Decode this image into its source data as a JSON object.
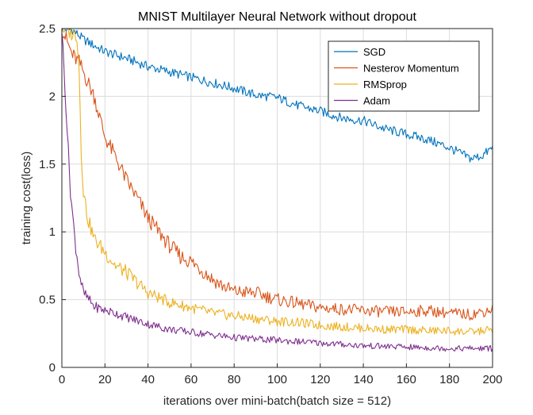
{
  "chart_data": {
    "type": "line",
    "title": "MNIST Multilayer Neural Network without dropout",
    "xlabel": "iterations over mini-batch(batch size = 512)",
    "ylabel": "training cost(loss)",
    "xlim": [
      0,
      200
    ],
    "ylim": [
      0,
      2.5
    ],
    "xticks": [
      0,
      20,
      40,
      60,
      80,
      100,
      120,
      140,
      160,
      180,
      200
    ],
    "yticks": [
      0,
      0.5,
      1,
      1.5,
      2,
      2.5
    ],
    "xtick_labels": [
      "0",
      "20",
      "40",
      "60",
      "80",
      "100",
      "120",
      "140",
      "160",
      "180",
      "200"
    ],
    "ytick_labels": [
      "0",
      "0.5",
      "1",
      "1.5",
      "2",
      "2.5"
    ],
    "grid": true,
    "legend_position": "top-right",
    "series": [
      {
        "name": "SGD",
        "color": "#0072BD",
        "x": [
          0,
          5,
          10,
          20,
          30,
          40,
          50,
          60,
          70,
          80,
          90,
          100,
          110,
          120,
          130,
          140,
          150,
          160,
          170,
          180,
          185,
          190,
          195,
          200
        ],
        "values": [
          2.5,
          2.49,
          2.42,
          2.33,
          2.28,
          2.22,
          2.18,
          2.14,
          2.1,
          2.06,
          2.01,
          1.99,
          1.93,
          1.89,
          1.84,
          1.82,
          1.76,
          1.72,
          1.68,
          1.62,
          1.58,
          1.54,
          1.56,
          1.62
        ]
      },
      {
        "name": "Nesterov Momentum",
        "color": "#D95319",
        "x": [
          0,
          3,
          5,
          8,
          10,
          15,
          20,
          25,
          30,
          35,
          40,
          45,
          50,
          55,
          60,
          65,
          70,
          75,
          80,
          90,
          100,
          110,
          120,
          130,
          140,
          150,
          160,
          170,
          180,
          190,
          200
        ],
        "values": [
          2.5,
          2.38,
          2.3,
          2.25,
          2.18,
          2.0,
          1.7,
          1.55,
          1.38,
          1.25,
          1.1,
          1.0,
          0.9,
          0.82,
          0.78,
          0.72,
          0.65,
          0.6,
          0.56,
          0.55,
          0.5,
          0.47,
          0.44,
          0.43,
          0.42,
          0.41,
          0.41,
          0.42,
          0.4,
          0.39,
          0.43
        ]
      },
      {
        "name": "RMSprop",
        "color": "#EDB120",
        "x": [
          0,
          3,
          5,
          7,
          8,
          9,
          10,
          12,
          15,
          20,
          25,
          30,
          40,
          50,
          60,
          70,
          80,
          90,
          100,
          110,
          120,
          130,
          140,
          150,
          160,
          170,
          180,
          190,
          200
        ],
        "values": [
          2.5,
          2.48,
          2.46,
          2.45,
          2.2,
          1.6,
          1.3,
          1.1,
          0.95,
          0.85,
          0.75,
          0.7,
          0.55,
          0.48,
          0.44,
          0.4,
          0.38,
          0.36,
          0.34,
          0.33,
          0.31,
          0.3,
          0.29,
          0.28,
          0.28,
          0.27,
          0.27,
          0.26,
          0.28
        ]
      },
      {
        "name": "Adam",
        "color": "#7E2F8E",
        "x": [
          0,
          2,
          4,
          6,
          8,
          10,
          15,
          20,
          25,
          30,
          40,
          50,
          60,
          70,
          80,
          90,
          100,
          120,
          140,
          160,
          180,
          200
        ],
        "values": [
          2.5,
          1.9,
          1.3,
          0.95,
          0.7,
          0.55,
          0.45,
          0.42,
          0.4,
          0.37,
          0.32,
          0.28,
          0.26,
          0.24,
          0.22,
          0.21,
          0.2,
          0.18,
          0.16,
          0.15,
          0.14,
          0.14
        ]
      }
    ]
  }
}
